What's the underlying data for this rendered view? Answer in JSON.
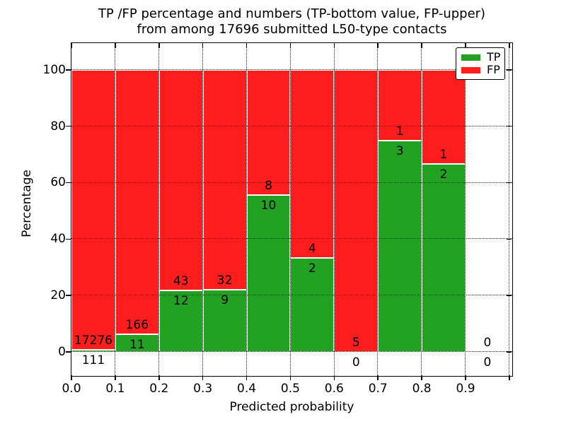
{
  "figure": {
    "title_lines": [
      "TP /FP percentage and numbers (TP-bottom value, FP-upper)",
      "from among 17696 submitted L50-type contacts"
    ]
  },
  "chart_data": {
    "type": "bar",
    "stacked": true,
    "title": "TP /FP percentage and numbers (TP-bottom value, FP-upper) from among 17696 submitted L50-type contacts",
    "xlabel": "Predicted probability",
    "ylabel": "Percentage",
    "xlim": [
      0,
      1.005
    ],
    "ylim": [
      -8.3,
      109.5
    ],
    "grid": "dotted",
    "bar_edge_color": "#ffffff",
    "x_ticks": [
      {
        "value": 0.0,
        "label": "0.0"
      },
      {
        "value": 0.1,
        "label": "0.1"
      },
      {
        "value": 0.2,
        "label": "0.2"
      },
      {
        "value": 0.3,
        "label": "0.3"
      },
      {
        "value": 0.4,
        "label": "0.4"
      },
      {
        "value": 0.5,
        "label": "0.5"
      },
      {
        "value": 0.6,
        "label": "0.6"
      },
      {
        "value": 0.7,
        "label": "0.7"
      },
      {
        "value": 0.8,
        "label": "0.8"
      },
      {
        "value": 0.9,
        "label": "0.9"
      }
    ],
    "x_grid_extra": [
      1.0
    ],
    "y_ticks": [
      {
        "value": 0,
        "label": "0"
      },
      {
        "value": 20,
        "label": "20"
      },
      {
        "value": 40,
        "label": "40"
      },
      {
        "value": 60,
        "label": "60"
      },
      {
        "value": 80,
        "label": "80"
      },
      {
        "value": 100,
        "label": "100"
      }
    ],
    "legend": {
      "position": "upper right",
      "entries": [
        {
          "label": "TP",
          "color": "#23a123"
        },
        {
          "label": "FP",
          "color": "#fd1d1d"
        }
      ]
    },
    "bins": [
      {
        "x0": 0.0,
        "x1": 0.1,
        "tp": 111,
        "fp": 17276,
        "tp_pct": 0.64
      },
      {
        "x0": 0.1,
        "x1": 0.2,
        "tp": 11,
        "fp": 166,
        "tp_pct": 6.21
      },
      {
        "x0": 0.2,
        "x1": 0.3,
        "tp": 12,
        "fp": 43,
        "tp_pct": 21.82
      },
      {
        "x0": 0.3,
        "x1": 0.4,
        "tp": 9,
        "fp": 32,
        "tp_pct": 21.95
      },
      {
        "x0": 0.4,
        "x1": 0.5,
        "tp": 10,
        "fp": 8,
        "tp_pct": 55.56
      },
      {
        "x0": 0.5,
        "x1": 0.6,
        "tp": 2,
        "fp": 4,
        "tp_pct": 33.33
      },
      {
        "x0": 0.6,
        "x1": 0.7,
        "tp": 0,
        "fp": 5,
        "tp_pct": 0.0
      },
      {
        "x0": 0.7,
        "x1": 0.8,
        "tp": 3,
        "fp": 1,
        "tp_pct": 75.0
      },
      {
        "x0": 0.8,
        "x1": 0.9,
        "tp": 2,
        "fp": 1,
        "tp_pct": 66.67
      },
      {
        "x0": 0.9,
        "x1": 1.0,
        "tp": 0,
        "fp": 0,
        "tp_pct": 0.0
      }
    ]
  }
}
